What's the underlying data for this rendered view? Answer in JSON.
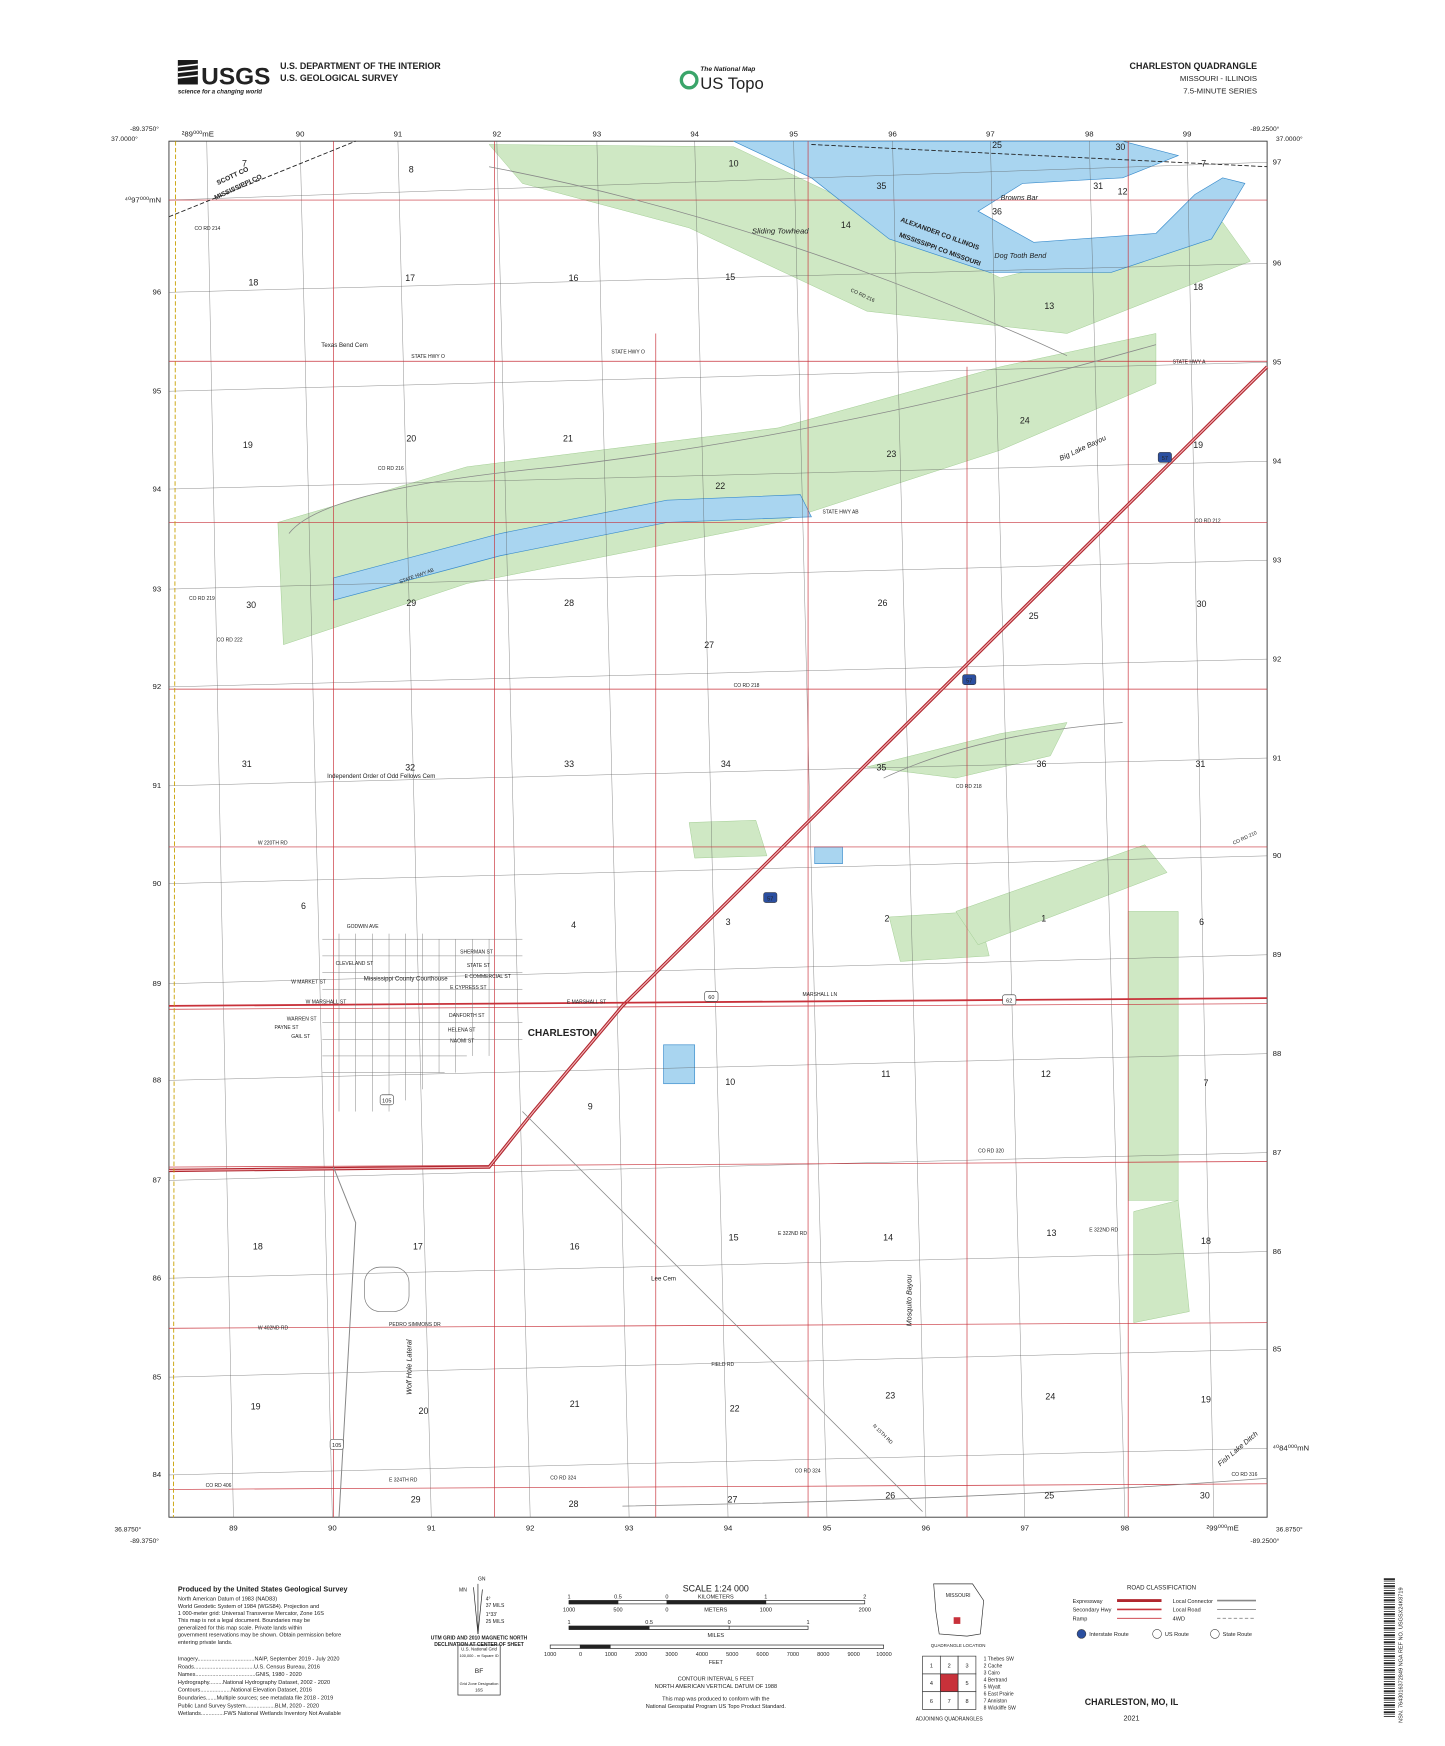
{
  "header": {
    "logo": "USGS",
    "tagline": "science for a changing world",
    "agency": "U.S. DEPARTMENT OF THE INTERIOR",
    "survey": "U.S. GEOLOGICAL SURVEY",
    "national_map": "The National Map",
    "us_topo": "US Topo",
    "quad_title": "CHARLESTON QUADRANGLE",
    "states": "MISSOURI - ILLINOIS",
    "series": "7.5-MINUTE SERIES"
  },
  "map": {
    "corners": [
      "-89.3750°",
      "37.0000°",
      "-89.2500°",
      "37.0000°",
      "36.8750°",
      "-89.3750°",
      "36.8750°",
      "-89.2500°"
    ],
    "top_eastings": [
      "²89⁰⁰⁰mE",
      "90",
      "91",
      "92",
      "93",
      "94",
      "95",
      "96",
      "97",
      "98",
      "99"
    ],
    "bottom_eastings": [
      "89",
      "90",
      "91",
      "92",
      "93",
      "94",
      "95",
      "96",
      "97",
      "98",
      "²99⁰⁰⁰mE"
    ],
    "left_northings": [
      "⁴⁰97⁰⁰⁰mN",
      "96",
      "95",
      "94",
      "93",
      "92",
      "91",
      "90",
      "89",
      "88",
      "87",
      "86",
      "85",
      "84"
    ],
    "right_northings": [
      "97",
      "96",
      "95",
      "94",
      "93",
      "92",
      "91",
      "90",
      "89",
      "88",
      "87",
      "86",
      "85",
      "⁴⁰84⁰⁰⁰mN"
    ],
    "sections": [
      "7",
      "8",
      "10",
      "35",
      "25",
      "30",
      "31",
      "12",
      "7",
      "36",
      "18",
      "17",
      "16",
      "15",
      "14",
      "13",
      "18",
      "19",
      "20",
      "21",
      "22",
      "23",
      "24",
      "19",
      "30",
      "29",
      "28",
      "27",
      "26",
      "25",
      "30",
      "31",
      "32",
      "33",
      "34",
      "35",
      "36",
      "31",
      "6",
      "4",
      "3",
      "2",
      "1",
      "6",
      "9",
      "10",
      "11",
      "12",
      "7",
      "18",
      "17",
      "16",
      "15",
      "14",
      "13",
      "18",
      "19",
      "20",
      "21",
      "22",
      "23",
      "24",
      "19",
      "29",
      "28",
      "27",
      "26",
      "25",
      "30"
    ],
    "places": [
      "Sliding Towhead",
      "Browns Bar",
      "Dog Tooth Bend",
      "Texas Bend Cem",
      "Independent Order of Odd Fellows Cem",
      "Mississippi County Courthouse",
      "CHARLESTON",
      "Lee Cem"
    ],
    "water": [
      "Big Lake Bayou",
      "Mosquito Bayou",
      "Wolf Hole Lateral",
      "Fish Lake Ditch"
    ],
    "boundaries": [
      "SCOTT CO",
      "MISSISSIPPI CO",
      "ALEXANDER CO  ILLINOIS",
      "MISSISSIPPI CO  MISSOURI"
    ],
    "roads": [
      "CO RD 214",
      "STATE HWY O",
      "STATE HWY O",
      "CO RD 216",
      "CO RD 216",
      "STATE HWY A",
      "STATE HWY AB",
      "STATE HWY AB",
      "CO RD 212",
      "CO RD 219",
      "CO RD 222",
      "CO RD 218",
      "CO RD 218",
      "W 220TH RD",
      "CO RD 210",
      "GODWIN AVE",
      "CLEVELAND ST",
      "W MARKET ST",
      "W MARSHALL ST",
      "WARREN ST",
      "PAYNE ST",
      "GAIL ST",
      "SHERMAN ST",
      "STATE ST",
      "E COMMERCIAL ST",
      "E CYPRESS ST",
      "E MARSHALL ST",
      "DANFORTH ST",
      "HELENA ST",
      "NAOMI ST",
      "MARSHALL LN",
      "CO RD 320",
      "E 322ND RD",
      "E 322ND RD",
      "PEDRO SIMMONS DR",
      "W 402ND RD",
      "FIELD RD",
      "CO RD 324",
      "CO RD 324",
      "E 324TH RD",
      "CO RD 406",
      "CO RD 316",
      "N 15TH RD"
    ],
    "shields": [
      "57",
      "57",
      "57",
      "60",
      "62",
      "105",
      "105"
    ]
  },
  "footer": {
    "produced_by": "Produced by the United States Geological Survey",
    "notes": [
      "North American Datum of 1983 (NAD83)",
      "World Geodetic System of 1984 (WGS84). Projection and",
      "1 000-meter grid: Universal Transverse Mercator, Zone 16S",
      "This map is not a legal document. Boundaries may be",
      "generalized for this map scale. Private lands within",
      "government reservations may be shown. Obtain permission before",
      "entering private lands."
    ],
    "sources": [
      "Imagery.....................................NAIP, September 2019 - July 2020",
      "Roads.......................................U.S. Census Bureau, 2016",
      "Names.......................................GNIS, 1980 - 2020",
      "Hydrography.........National Hydrography Dataset, 2002 - 2020",
      "Contours....................National Elevation Dataset, 2016",
      "Boundaries.......Multiple sources; see metadata file 2018 - 2019",
      "Public Land Survey System...................BLM, 2020 - 2020",
      "Wetlands...............FWS National Wetlands Inventory Not Available"
    ],
    "declination": [
      "GN",
      "MN",
      "4°",
      "37 MILS",
      "1°33'",
      "25 MILS"
    ],
    "declination_caption": [
      "UTM GRID AND 2010 MAGNETIC NORTH",
      "DECLINATION AT CENTER OF SHEET"
    ],
    "national_grid": [
      "U.S. National Grid",
      "100,000 - m Square ID",
      "BF",
      "Grid Zone Designation",
      "16S"
    ],
    "scale_title": "SCALE 1:24 000",
    "km_ticks": [
      "1",
      "0.5",
      "0",
      "1",
      "2"
    ],
    "km_label": "KILOMETERS",
    "m_ticks": [
      "1000",
      "500",
      "0",
      "1000",
      "2000"
    ],
    "m_label": "METERS",
    "mi_ticks": [
      "1",
      "0.5",
      "0",
      "1"
    ],
    "mi_label": "MILES",
    "ft_ticks": [
      "1000",
      "0",
      "1000",
      "2000",
      "3000",
      "4000",
      "5000",
      "6000",
      "7000",
      "8000",
      "9000",
      "10000"
    ],
    "ft_label": "FEET",
    "contour": [
      "CONTOUR INTERVAL 5 FEET",
      "NORTH AMERICAN VERTICAL DATUM OF 1988"
    ],
    "standard": [
      "This map was produced to conform with the",
      "National Geospatial Program US Topo Product Standard."
    ],
    "state_name": "MISSOURI",
    "location_caption": "QUADRANGLE LOCATION",
    "adjoining_numbers": [
      "1",
      "2",
      "3",
      "4",
      "5",
      "6",
      "7",
      "8"
    ],
    "adjoining_names": [
      "1 Thebes SW",
      "2 Cache",
      "3 Cairo",
      "4 Bertrand",
      "5 Wyatt",
      "6 East Prairie",
      "7 Anniston",
      "8 Wickliffe SW"
    ],
    "adjoining_title": "ADJOINING QUADRANGLES",
    "road_title": "ROAD CLASSIFICATION",
    "road_left": [
      "Expressway",
      "Secondary Hwy",
      "Ramp"
    ],
    "road_right": [
      "Local Connector",
      "Local Road",
      "4WD"
    ],
    "route_types": [
      "Interstate Route",
      "US Route",
      "State Route"
    ],
    "sheet_title": "CHARLESTON, MO, IL",
    "year": "2021",
    "barcode": "NSN. 7643016372849 NGA REF NO. USGSX24K8719"
  }
}
